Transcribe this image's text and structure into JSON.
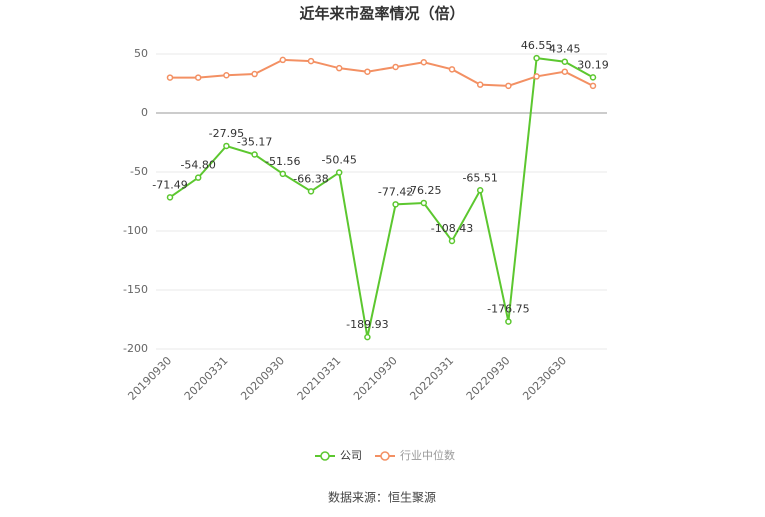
{
  "chart_data": {
    "type": "line",
    "title": "近年来市盈率情况（倍）",
    "categories": [
      "20190930",
      null,
      "20200331",
      null,
      "20200930",
      null,
      "20210331",
      null,
      "20210930",
      null,
      "20220331",
      null,
      "20220930",
      null,
      "20230630",
      null
    ],
    "series": [
      {
        "name": "公司",
        "color": "#5cc72f",
        "values": [
          -71.49,
          -54.8,
          -27.95,
          -35.17,
          -51.56,
          -66.38,
          -50.45,
          -189.93,
          -77.42,
          -76.25,
          -108.43,
          -65.51,
          -176.75,
          46.55,
          43.45,
          30.19
        ],
        "value_labels": [
          "-71.49",
          "-54.80",
          "-27.95",
          "-35.17",
          "-51.56",
          "-66.38",
          "-50.45",
          "-189.93",
          "-77.42",
          "-76.25",
          "-108.43",
          "-65.51",
          "-176.75",
          "46.55",
          "43.45",
          "30.19"
        ]
      },
      {
        "name": "行业中位数",
        "color": "#f39063",
        "values": [
          30,
          30,
          32,
          33,
          45,
          44,
          38,
          35,
          39,
          43,
          37,
          24,
          23,
          31,
          35,
          23
        ]
      }
    ],
    "ylim": [
      -200,
      50
    ],
    "yticks": [
      50,
      0,
      -50,
      -100,
      -150,
      -200
    ],
    "grid": true,
    "source": "数据来源：恒生聚源"
  }
}
